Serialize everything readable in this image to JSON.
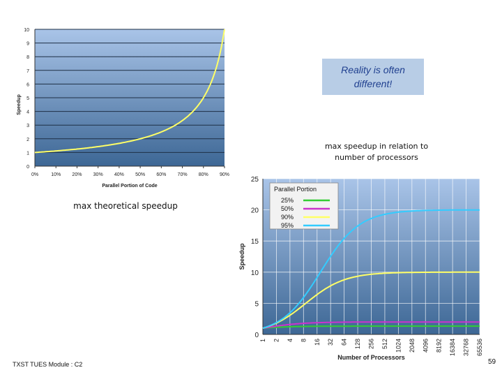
{
  "callout": {
    "line1": "Reality is often",
    "line2": "different!"
  },
  "captions": {
    "right_chart": [
      "max speedup in relation to",
      "number of processors"
    ],
    "left_chart": "max theoretical speedup"
  },
  "footer": {
    "module": "TXST TUES Module : C2",
    "page": "59"
  },
  "chart_data": [
    {
      "type": "line",
      "xlabel": "Parallel Portion of Code",
      "ylabel": "Speedup",
      "x_ticks": [
        "0%",
        "10%",
        "20%",
        "30%",
        "40%",
        "50%",
        "60%",
        "70%",
        "80%",
        "90%"
      ],
      "y_ticks": [
        "0",
        "1",
        "2",
        "3",
        "4",
        "5",
        "6",
        "7",
        "8",
        "9",
        "10"
      ],
      "xlim": [
        0,
        0.9
      ],
      "ylim": [
        0,
        10
      ],
      "grid": true,
      "series": [
        {
          "color": "#ffff66",
          "formula": "1/(1-p)"
        }
      ]
    },
    {
      "type": "line",
      "xlabel": "Number of Processors",
      "ylabel": "Speedup",
      "x_ticks": [
        "1",
        "2",
        "4",
        "8",
        "16",
        "32",
        "64",
        "128",
        "256",
        "512",
        "1024",
        "2048",
        "4096",
        "8192",
        "16384",
        "32768",
        "65536"
      ],
      "y_ticks": [
        "0",
        "5",
        "10",
        "15",
        "20",
        "25"
      ],
      "ylim": [
        0,
        25
      ],
      "x_scale": "log2",
      "grid": true,
      "legend": {
        "title": "Parallel Portion",
        "position": "top-left"
      },
      "series": [
        {
          "name": "25%",
          "color": "#33cc33",
          "p": 0.25
        },
        {
          "name": "50%",
          "color": "#cc33cc",
          "p": 0.5
        },
        {
          "name": "90%",
          "color": "#ffff66",
          "p": 0.9
        },
        {
          "name": "95%",
          "color": "#33ccff",
          "p": 0.95
        }
      ]
    }
  ]
}
